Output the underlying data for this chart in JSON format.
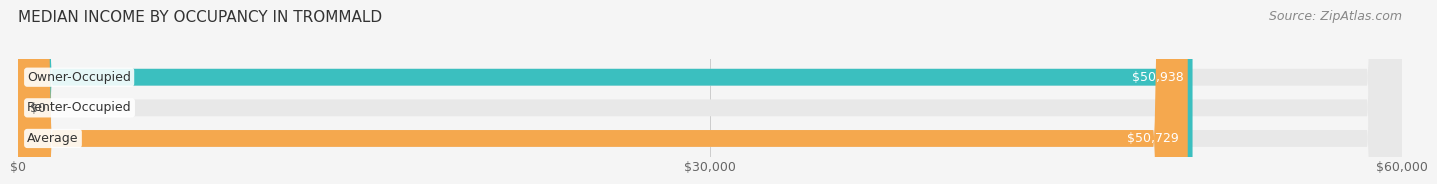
{
  "title": "MEDIAN INCOME BY OCCUPANCY IN TROMMALD",
  "source": "Source: ZipAtlas.com",
  "categories": [
    "Owner-Occupied",
    "Renter-Occupied",
    "Average"
  ],
  "values": [
    50938,
    0,
    50729
  ],
  "bar_colors": [
    "#3bbfbf",
    "#c9a8d4",
    "#f5a84e"
  ],
  "bar_labels": [
    "$50,938",
    "$0",
    "$50,729"
  ],
  "label_colors": [
    "#ffffff",
    "#555555",
    "#ffffff"
  ],
  "xlim": [
    0,
    60000
  ],
  "xticks": [
    0,
    30000,
    60000
  ],
  "xtick_labels": [
    "$0",
    "$30,000",
    "$60,000"
  ],
  "background_color": "#f5f5f5",
  "bar_bg_color": "#e8e8e8",
  "title_fontsize": 11,
  "source_fontsize": 9,
  "label_fontsize": 9,
  "tick_fontsize": 9,
  "bar_height": 0.55
}
